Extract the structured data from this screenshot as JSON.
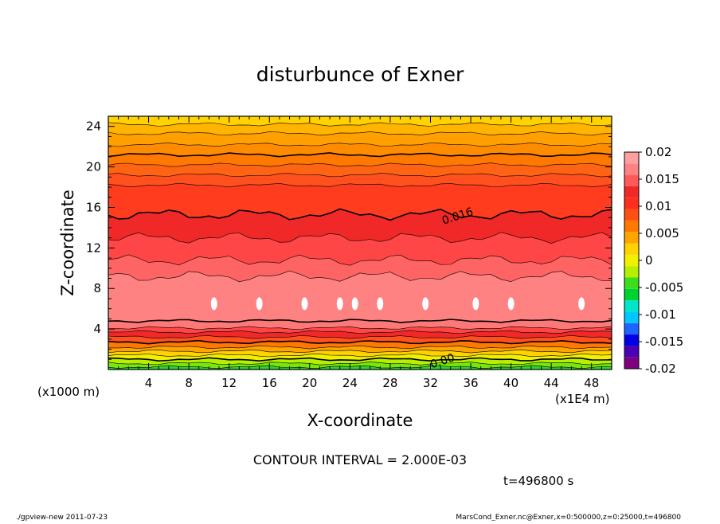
{
  "chart_data": {
    "type": "contour",
    "title": "disturbunce of Exner",
    "xlabel": "X-coordinate",
    "ylabel": "Z-coordinate",
    "x_unit": "(x1E4 m)",
    "y_unit": "(x1000 m)",
    "x_ticks": [
      4,
      8,
      12,
      16,
      20,
      24,
      28,
      32,
      36,
      40,
      44,
      48
    ],
    "y_ticks": [
      4,
      8,
      12,
      16,
      20,
      24
    ],
    "xlim": [
      0,
      50
    ],
    "ylim": [
      0,
      25
    ],
    "contour_labels": [
      {
        "text": "0.016",
        "x": 34.8,
        "y": 14.8
      },
      {
        "text": "0.00",
        "x": 33.3,
        "y": 0.5
      }
    ],
    "contour_interval": "CONTOUR INTERVAL = 2.000E-03",
    "colorbar": {
      "labels": [
        "0.02",
        "0.015",
        "0.01",
        "0.005",
        "0",
        "-0.005",
        "-0.01",
        "-0.015",
        "-0.02"
      ],
      "range": [
        -0.02,
        0.02
      ],
      "colors": [
        "#7f007f",
        "#4b00b4",
        "#0000e6",
        "#1e64ff",
        "#00c8ff",
        "#00e6c8",
        "#00d232",
        "#3cdc1e",
        "#b4f000",
        "#f0f000",
        "#ffd200",
        "#ffa500",
        "#ff7800",
        "#ff5014",
        "#ff2d1e",
        "#f02828",
        "#ff5a5a",
        "#ff8282",
        "#ffa0a0"
      ]
    }
  },
  "time_label": "t=496800 s",
  "footer": {
    "left": "./gpview-new  2011-07-23",
    "right": "MarsCond_Exner.nc@Exner,x=0:500000,z=0:25000,t=496800"
  }
}
